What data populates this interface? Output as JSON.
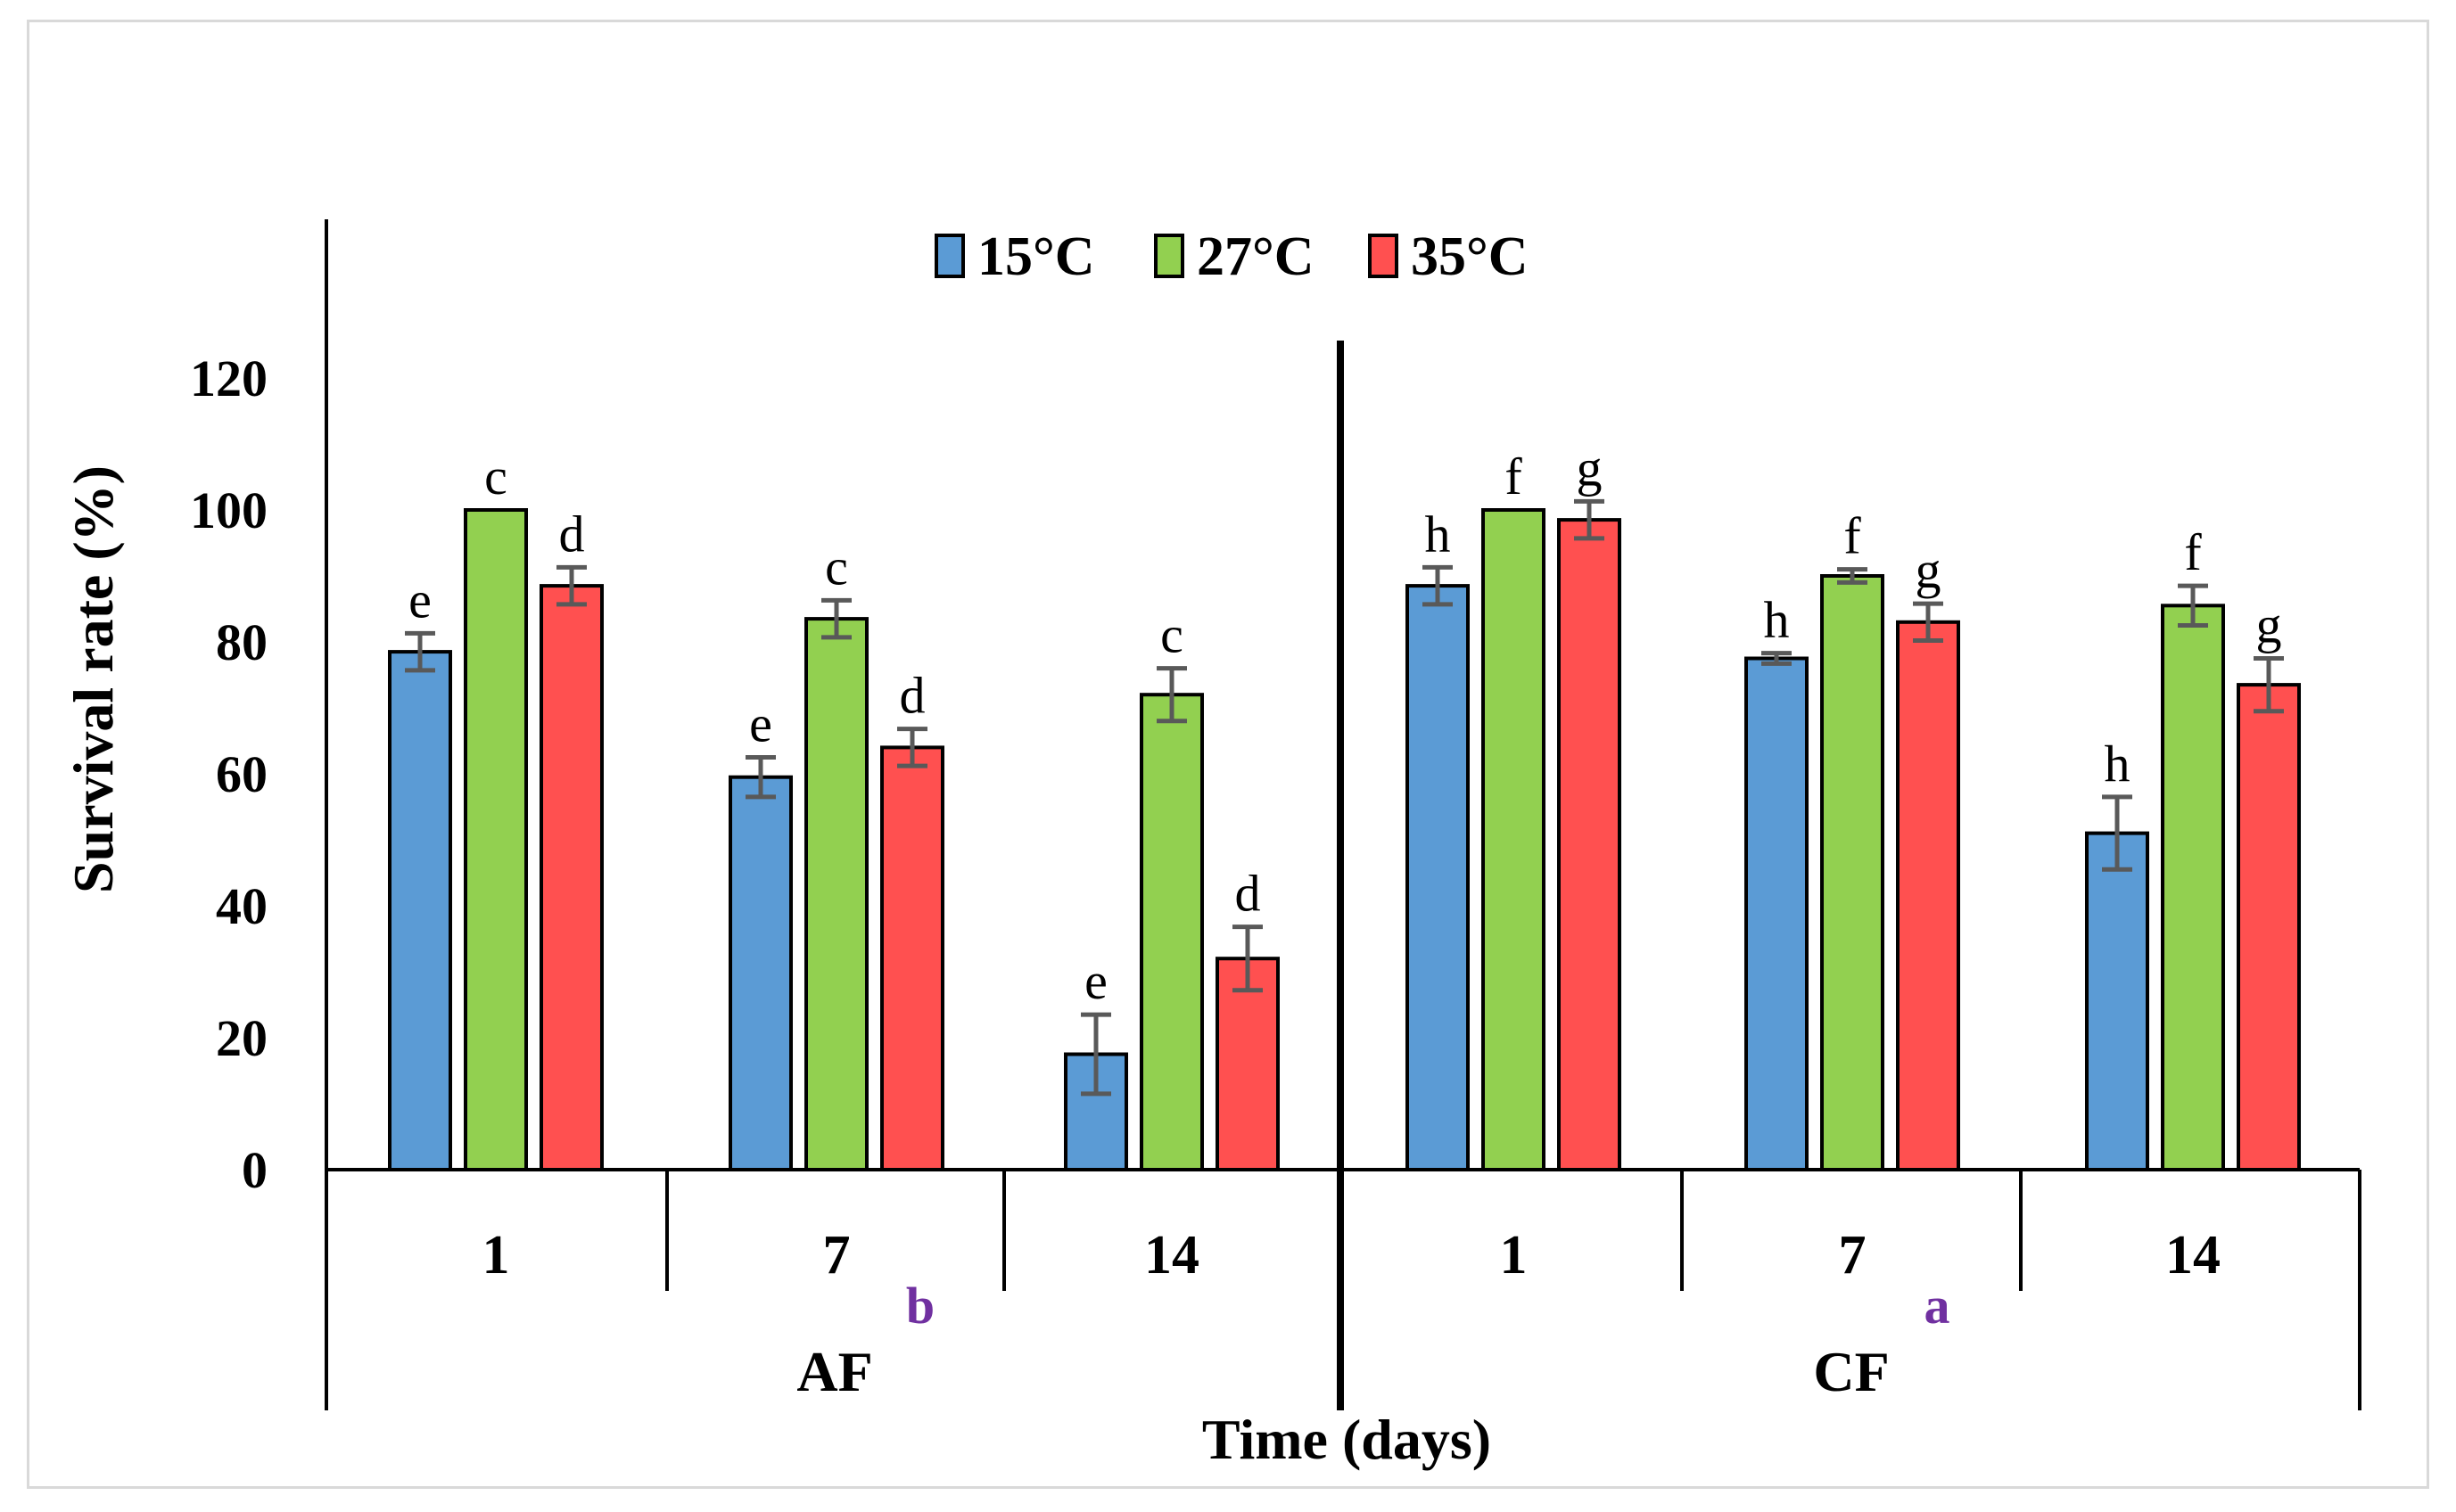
{
  "chart_data": {
    "type": "bar",
    "ylabel": "Survival rate (%)",
    "xlabel": "Time (days)",
    "ylim": [
      0,
      120
    ],
    "yticks": [
      0,
      20,
      40,
      60,
      80,
      100,
      120
    ],
    "legend_position": "top-center",
    "grid": false,
    "groups": [
      {
        "name": "AF",
        "annotation": "b",
        "categories": [
          "1",
          "7",
          "14"
        ]
      },
      {
        "name": "CF",
        "annotation": "a",
        "categories": [
          "1",
          "7",
          "14"
        ]
      }
    ],
    "series": [
      {
        "name": "15°C",
        "color": "#5b9bd5",
        "values": [
          78.5,
          59.5,
          17.5,
          88.5,
          77.5,
          51
        ],
        "errors": [
          2.8,
          3,
          6,
          2.8,
          0.8,
          5.5
        ],
        "letters": [
          "e",
          "e",
          "e",
          "h",
          "h",
          "h"
        ]
      },
      {
        "name": "27°C",
        "color": "#92d050",
        "values": [
          100,
          83.5,
          72,
          100,
          90,
          85.5
        ],
        "errors": [
          0,
          2.8,
          4,
          0,
          1,
          3
        ],
        "letters": [
          "c",
          "c",
          "c",
          "f",
          "f",
          "f"
        ]
      },
      {
        "name": "35°C",
        "color": "#ff5050",
        "values": [
          88.5,
          64,
          32,
          98.5,
          83,
          73.5
        ],
        "errors": [
          2.8,
          2.8,
          4.8,
          2.8,
          2.8,
          4
        ],
        "letters": [
          "d",
          "d",
          "d",
          "g",
          "g",
          "g"
        ]
      }
    ]
  }
}
